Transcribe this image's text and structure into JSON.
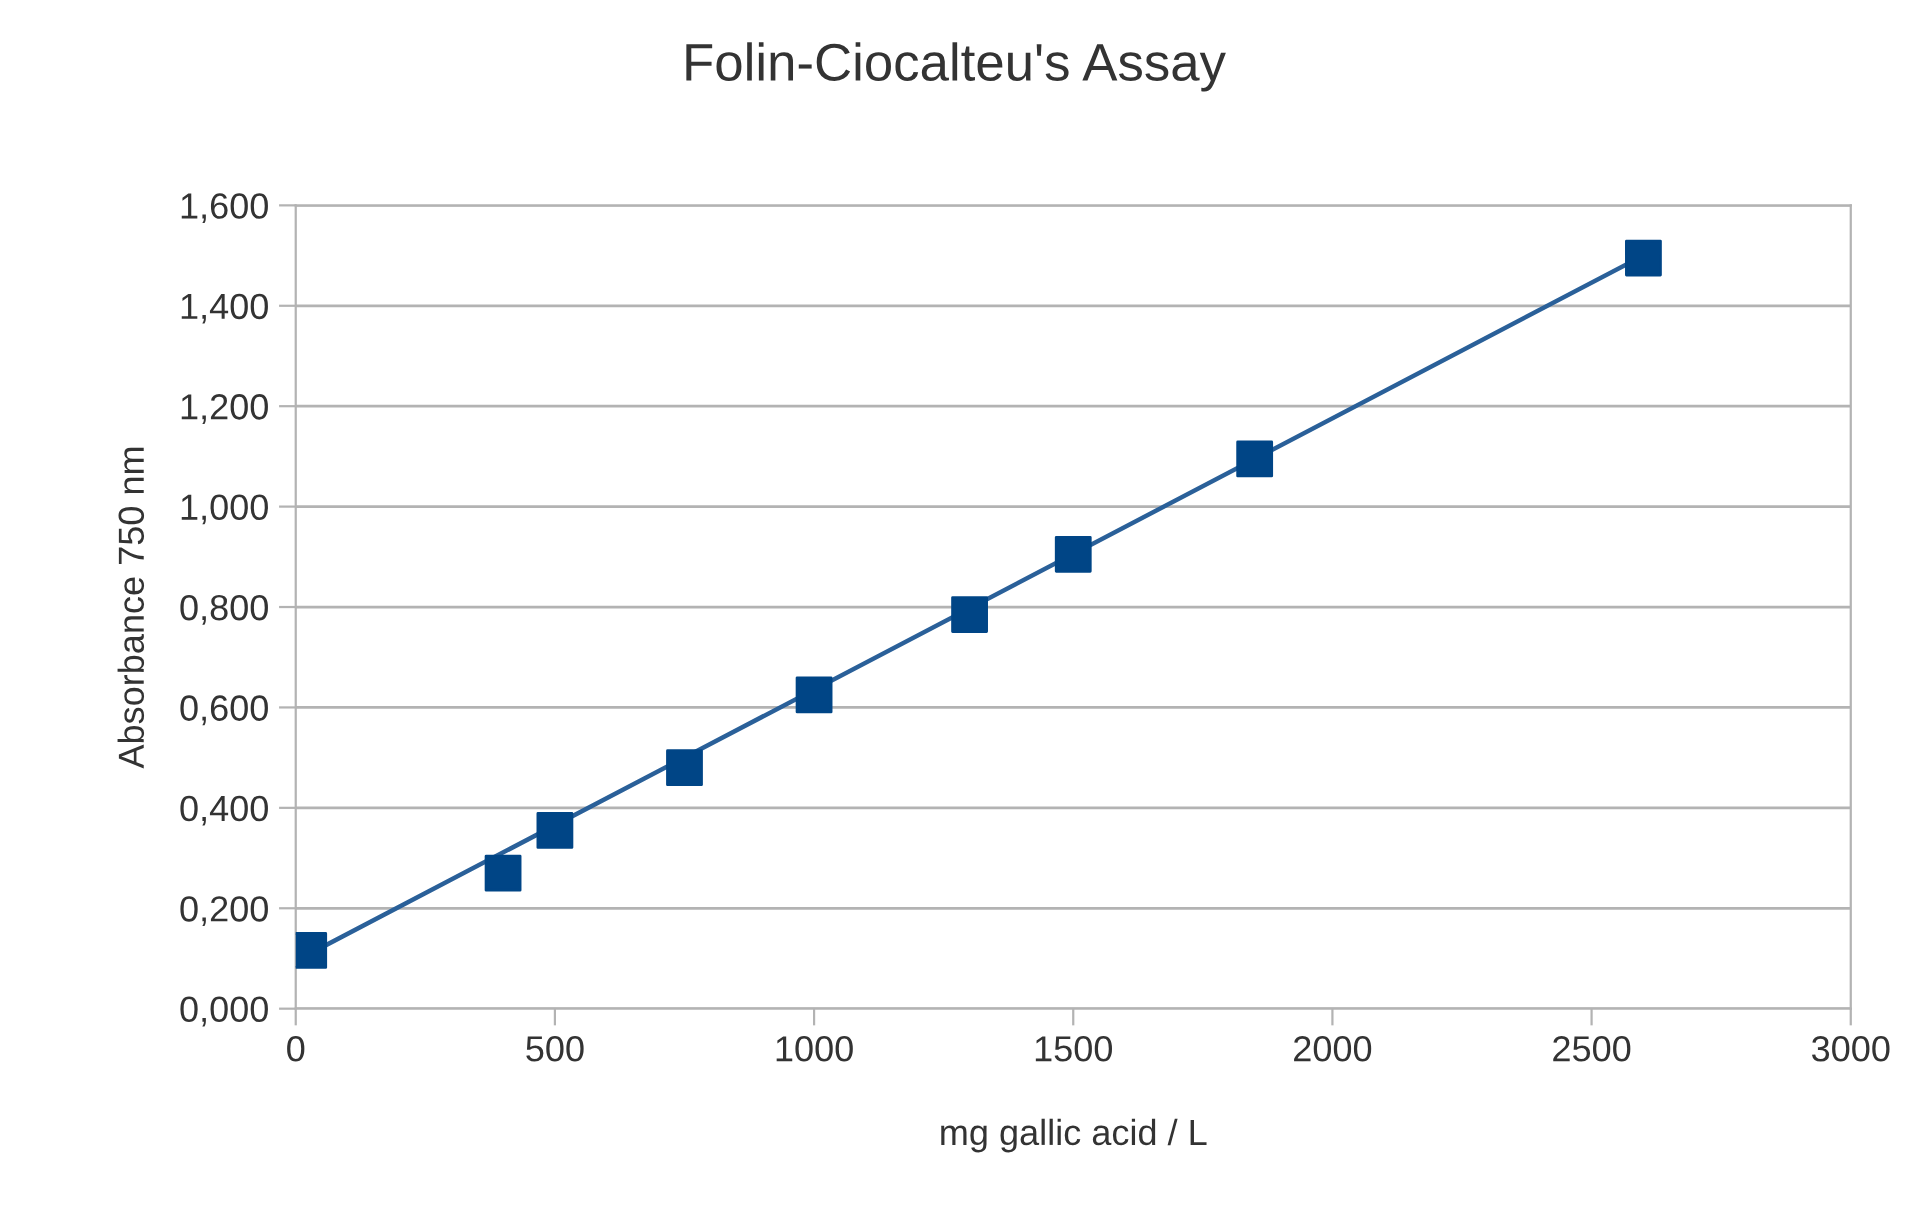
{
  "chart_data": {
    "type": "scatter",
    "title": "Folin-Ciocalteu's Assay",
    "xlabel": "mg gallic acid / L",
    "ylabel": "Absorbance 750 nm",
    "series": [
      {
        "color": "#004586",
        "marker": "square",
        "x": [
          25,
          400,
          500,
          750,
          1000,
          1300,
          1500,
          1850,
          2600
        ],
        "values": [
          0.116,
          0.27,
          0.355,
          0.48,
          0.625,
          0.785,
          0.905,
          1.095,
          1.495
        ]
      },
      {
        "type": "line",
        "color": "#2a6099",
        "marker": "none",
        "x": [
          0,
          2600
        ],
        "values": [
          0.095,
          1.5
        ]
      }
    ],
    "xlim": [
      0,
      3000
    ],
    "xticks": [
      0,
      500,
      1000,
      1500,
      2000,
      2500,
      3000
    ],
    "ylim": [
      0,
      1.6
    ],
    "yticks": [
      {
        "value": 0,
        "label": "0,000"
      },
      {
        "value": 0.2,
        "label": "0,200"
      },
      {
        "value": 0.4,
        "label": "0,400"
      },
      {
        "value": 0.6,
        "label": "0,600"
      },
      {
        "value": 0.8,
        "label": "0,800"
      },
      {
        "value": 1.0,
        "label": "1,000"
      },
      {
        "value": 1.2,
        "label": "1,200"
      },
      {
        "value": 1.4,
        "label": "1,400"
      },
      {
        "value": 1.6,
        "label": "1,600"
      }
    ],
    "grid": "y",
    "legend": false
  }
}
